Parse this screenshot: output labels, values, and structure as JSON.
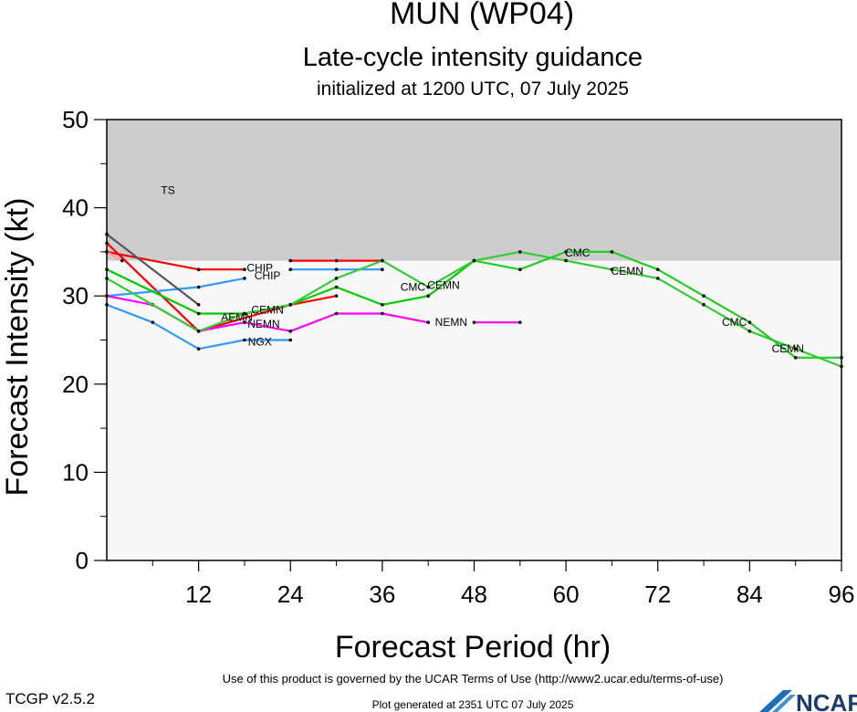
{
  "title": "MUN (WP04)",
  "subtitle": "Late-cycle intensity guidance",
  "init_text": "initialized at 1200 UTC, 07 July 2025",
  "footer": {
    "terms": "Use of this product is governed by the UCAR Terms of Use (http://www2.ucar.edu/terms-of-use)",
    "version": "TCGP v2.5.2",
    "generated": "Plot generated at 2351 UTC   07 July 2025",
    "logo": "NCAR"
  },
  "chart_data": {
    "type": "line",
    "title": "MUN (WP04)",
    "subtitle": "Late-cycle intensity guidance",
    "xlabel": "Forecast Period (hr)",
    "ylabel": "Forecast Intensity (kt)",
    "xlim": [
      0,
      96
    ],
    "ylim": [
      0,
      50
    ],
    "xticks": [
      12,
      24,
      36,
      48,
      60,
      72,
      84,
      96
    ],
    "yticks": [
      0,
      10,
      20,
      30,
      40,
      50
    ],
    "grid": false,
    "background_colors": {
      "ts_band": "#cccccc",
      "below": "#f8f8f8"
    },
    "bands": [
      {
        "label": "TS",
        "y_from": 34,
        "y_to": 50,
        "color": "#cccccc"
      }
    ],
    "series": [
      {
        "name": "CHIP",
        "color": "#ff0000",
        "x": [
          0,
          12,
          18
        ],
        "y": [
          35,
          33,
          33
        ]
      },
      {
        "color": "#ff0000",
        "x": [
          0,
          12,
          24,
          30
        ],
        "y": [
          36,
          26,
          29,
          30
        ]
      },
      {
        "color": "#ff0000",
        "x": [
          24,
          30,
          36
        ],
        "y": [
          34,
          34,
          34
        ]
      },
      {
        "name": "CHIP",
        "color": "#3399ff",
        "x": [
          0,
          12,
          18
        ],
        "y": [
          30,
          31,
          32
        ]
      },
      {
        "color": "#3399ff",
        "x": [
          24,
          30,
          36
        ],
        "y": [
          33,
          33,
          33
        ]
      },
      {
        "name": "NGX",
        "color": "#3399ff",
        "x": [
          0,
          6,
          12,
          18,
          24
        ],
        "y": [
          29,
          27,
          24,
          25,
          25
        ]
      },
      {
        "name": "NEMN",
        "color": "#ff00ff",
        "x": [
          0,
          6,
          12,
          18,
          24,
          30,
          36,
          42
        ],
        "y": [
          30,
          29,
          26,
          27,
          26,
          28,
          28,
          27
        ]
      },
      {
        "color": "#ff00ff",
        "x": [
          48,
          54
        ],
        "y": [
          27,
          27
        ]
      },
      {
        "name": "AEMN",
        "color": "#00cc00",
        "x": [
          0,
          12,
          18,
          24,
          30,
          36,
          42,
          48
        ],
        "y": [
          33,
          28,
          28,
          29,
          31,
          29,
          30,
          34
        ]
      },
      {
        "name": "CMC",
        "color": "#33cc33",
        "x": [
          0,
          12,
          18,
          24,
          30,
          36,
          42,
          48,
          54,
          60,
          66,
          72,
          78,
          84,
          90,
          96
        ],
        "y": [
          32,
          26,
          28,
          29,
          32,
          34,
          31,
          34,
          35,
          34,
          33,
          32,
          29,
          26,
          24,
          22
        ]
      },
      {
        "name": "CEMN",
        "color": "#22cc22",
        "x": [
          48,
          54,
          60,
          66,
          72,
          78,
          84,
          90,
          96
        ],
        "y": [
          34,
          33,
          35,
          35,
          33,
          30,
          27,
          23,
          23
        ]
      },
      {
        "color": "#555555",
        "x": [
          0,
          12
        ],
        "y": [
          37,
          29
        ]
      },
      {
        "color": "#ff9999",
        "x": [
          0,
          2
        ],
        "y": [
          35,
          34
        ]
      }
    ],
    "annotations": [
      {
        "text": "TS",
        "x": 8,
        "y": 42
      },
      {
        "text": "CHIP",
        "x": 20,
        "y": 33.2
      },
      {
        "text": "CHIP",
        "x": 21,
        "y": 32.3
      },
      {
        "text": "AEMN",
        "x": 17,
        "y": 27.6
      },
      {
        "text": "CEMN",
        "x": 21,
        "y": 28.4
      },
      {
        "text": "NEMN",
        "x": 20.5,
        "y": 26.8
      },
      {
        "text": "NGX",
        "x": 20,
        "y": 24.8
      },
      {
        "text": "CMC",
        "x": 40,
        "y": 31
      },
      {
        "text": "CEMN",
        "x": 44,
        "y": 31.2
      },
      {
        "text": "NEMN",
        "x": 45,
        "y": 27
      },
      {
        "text": "CMC",
        "x": 61.5,
        "y": 34.9
      },
      {
        "text": "CEMN",
        "x": 68,
        "y": 32.8
      },
      {
        "text": "CMC",
        "x": 82,
        "y": 27
      },
      {
        "text": "CEMN",
        "x": 89,
        "y": 24
      }
    ]
  }
}
